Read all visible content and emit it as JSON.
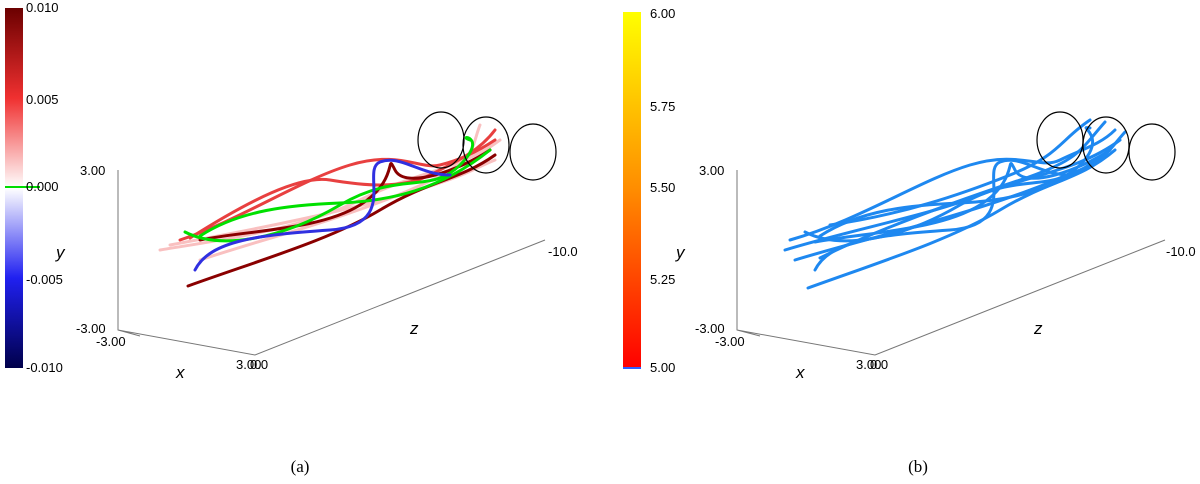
{
  "panels": [
    {
      "caption": "(a)",
      "colorbar": {
        "ticks": [
          "0.010",
          "0.005",
          "0.000",
          "-0.005",
          "-0.010"
        ]
      },
      "axes": {
        "y_label": "y",
        "z_label": "z",
        "x_label": "x",
        "y_max": "3.00",
        "y_min": "-3.00",
        "x_min": "-3.00",
        "x_max": "3.00",
        "z_min": "0.0",
        "z_max": "-10.0"
      }
    },
    {
      "caption": "(b)",
      "colorbar": {
        "ticks": [
          "6.00",
          "5.75",
          "5.50",
          "5.25",
          "5.00"
        ]
      },
      "axes": {
        "y_label": "y",
        "z_label": "z",
        "x_label": "x",
        "y_max": "3.00",
        "y_min": "-3.00",
        "x_min": "-3.00",
        "x_max": "3.00",
        "z_min": "0.0",
        "z_max": "-10.0"
      }
    }
  ]
}
